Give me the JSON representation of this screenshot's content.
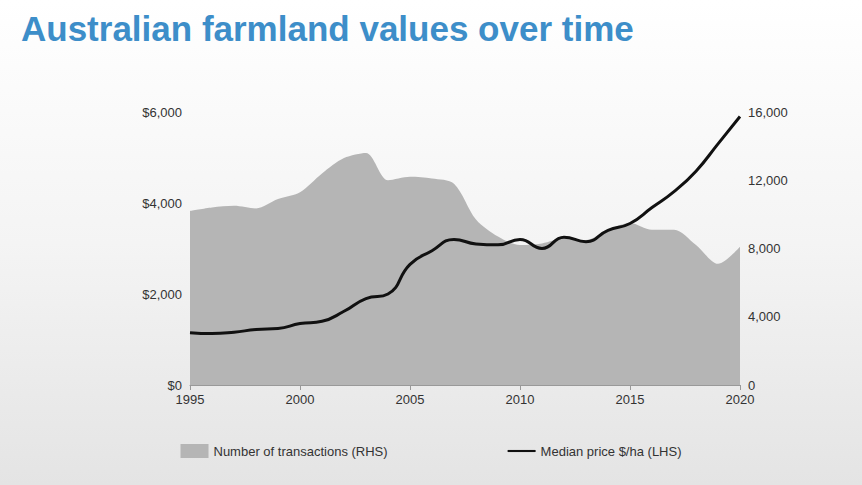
{
  "chart_data": {
    "type": "line",
    "title": "Australian farmland values over time",
    "x": [
      1995,
      1996,
      1997,
      1998,
      1999,
      2000,
      2001,
      2002,
      2003,
      2004,
      2005,
      2006,
      2007,
      2008,
      2009,
      2010,
      2011,
      2012,
      2013,
      2014,
      2015,
      2016,
      2017,
      2018,
      2019,
      2020
    ],
    "xlim": [
      1995,
      2020
    ],
    "xticks": [
      1995,
      2000,
      2005,
      2010,
      2015,
      2020
    ],
    "ylim": [
      0,
      6000
    ],
    "yticks": [
      {
        "value": 0,
        "label": "$0"
      },
      {
        "value": 2000,
        "label": "$2,000"
      },
      {
        "value": 4000,
        "label": "$4,000"
      },
      {
        "value": 6000,
        "label": "$6,000"
      }
    ],
    "y2lim": [
      0,
      16000
    ],
    "y2ticks": [
      0,
      {
        "value": 4000,
        "label": "4,000"
      },
      {
        "value": 8000,
        "label": "8,000"
      },
      {
        "value": 12000,
        "label": "12,000"
      },
      {
        "value": 16000,
        "label": "16,000"
      }
    ],
    "grid": false,
    "legend": "bottom",
    "series": [
      {
        "name": "Number of transactions (RHS)",
        "type": "area",
        "axis": "y2",
        "color": "#b5b5b5",
        "values": [
          10200,
          10400,
          10500,
          10350,
          10900,
          11300,
          12400,
          13300,
          13600,
          12000,
          12200,
          12100,
          11800,
          9700,
          8700,
          8200,
          8300,
          8600,
          8500,
          9100,
          9500,
          9100,
          9100,
          8200,
          7100,
          8100
        ]
      },
      {
        "name": "Median price $/ha (LHS)",
        "type": "line",
        "color": "#111111",
        "values": [
          1150,
          1130,
          1160,
          1220,
          1240,
          1350,
          1400,
          1620,
          1900,
          2000,
          2650,
          2950,
          3200,
          3100,
          3080,
          3200,
          3000,
          3250,
          3150,
          3400,
          3550,
          3900,
          4250,
          4700,
          5300,
          5900
        ]
      }
    ]
  }
}
